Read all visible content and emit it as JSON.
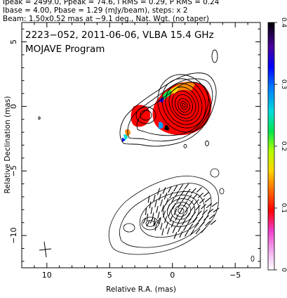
{
  "header": {
    "line1": "Ipeak = 2499.0, Ppeak = 74.6, I RMS = 0.29, P RMS = 0.24",
    "line2": "Ibase = 4.00, Pbase = 1.29 (mJy/beam), steps: x 2",
    "line3": "Beam: 1.50x0.52 mas at −9.1 deg., Nat. Wgt. (no taper)"
  },
  "chart_data": {
    "type": "contour",
    "title": "2223−052, 2011-06-06, VLBA 15.4 GHz",
    "subtitle": "MOJAVE Program",
    "xlabel": "Relative R.A. (mas)",
    "ylabel": "Relative Declination (mas)",
    "xlim": [
      12,
      -7
    ],
    "ylim": [
      -12.5,
      6.5
    ],
    "x_ticks": [
      10,
      5,
      0,
      -5
    ],
    "y_ticks": [
      5,
      0,
      -5,
      -10
    ],
    "x_tick_labels": [
      "10",
      "5",
      "0",
      "−5"
    ],
    "y_tick_labels": [
      "5",
      "0",
      "−5",
      "−10"
    ],
    "colorbar": {
      "min": 0,
      "max": 0.4,
      "ticks": [
        0,
        0.1,
        0.2,
        0.3,
        0.4
      ],
      "tick_labels": [
        "0",
        "0.1",
        "0.2",
        "0.3",
        "0.4"
      ],
      "colors": [
        "#ffffff",
        "#f0b3f0",
        "#f03cc8",
        "#ff0000",
        "#ff8c00",
        "#ffdc00",
        "#b4ff00",
        "#00e650",
        "#00dcdc",
        "#00a0ff",
        "#0000ff",
        "#4b00a0",
        "#000000"
      ]
    },
    "total_intensity_panel": {
      "peak_mJy_per_beam": 2499.0,
      "base_contour_mJy_per_beam": 4.0,
      "contour_step_factor": 2,
      "core_position": [
        0,
        0
      ],
      "jet_direction": "north-west to south-east"
    },
    "polarized_intensity_panel": {
      "peak_mJy_per_beam": 74.6,
      "base_contour_mJy_per_beam": 1.29,
      "offset_dec_mas": -9.5,
      "evpa_ticks": "short dark line segments across the polarized emission"
    },
    "colors": {
      "contour": "#000000",
      "fractional_polarization_main": "#ff0000"
    }
  }
}
